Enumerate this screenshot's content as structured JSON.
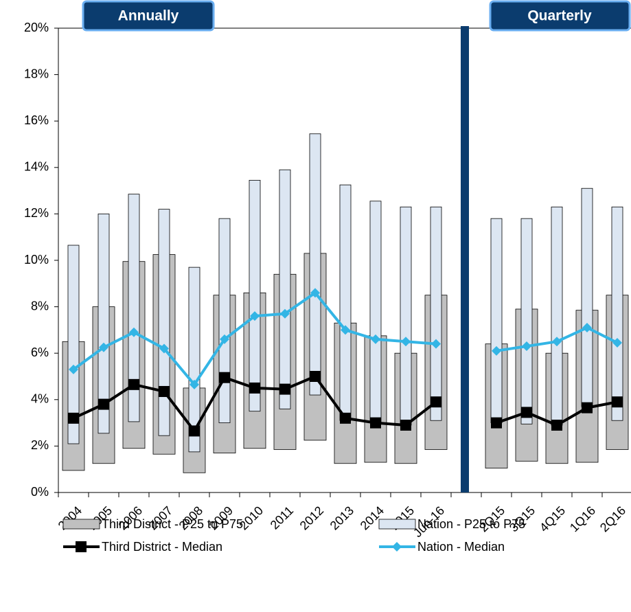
{
  "chart_data": {
    "type": "bar",
    "annotations": [
      "Annually",
      "Quarterly"
    ],
    "categories": [
      "2004",
      "2005",
      "2006",
      "2007",
      "2008",
      "2009",
      "2010",
      "2011",
      "2012",
      "2013",
      "2014",
      "2015",
      "Jun-16",
      null,
      "2Q15",
      "3Q15",
      "4Q15",
      "1Q16",
      "2Q16"
    ],
    "ylim": [
      0,
      20
    ],
    "yticks": [
      {
        "value": 0,
        "label": "0%"
      },
      {
        "value": 2,
        "label": "2%"
      },
      {
        "value": 4,
        "label": "4%"
      },
      {
        "value": 6,
        "label": "6%"
      },
      {
        "value": 8,
        "label": "8%"
      },
      {
        "value": 10,
        "label": "10%"
      },
      {
        "value": 12,
        "label": "12%"
      },
      {
        "value": 14,
        "label": "14%"
      },
      {
        "value": 16,
        "label": "16%"
      },
      {
        "value": 18,
        "label": "18%"
      },
      {
        "value": 20,
        "label": "20%"
      }
    ],
    "series": [
      {
        "name": "Third District - P25 to P75",
        "type": "range",
        "color": "#c0c0c0",
        "low": [
          0.95,
          1.25,
          1.9,
          1.65,
          0.85,
          1.7,
          1.9,
          1.85,
          2.25,
          1.25,
          1.3,
          1.25,
          1.85,
          null,
          1.05,
          1.35,
          1.25,
          1.3,
          1.85
        ],
        "high": [
          6.5,
          8.0,
          9.95,
          10.25,
          4.5,
          8.5,
          8.6,
          9.4,
          10.3,
          7.3,
          6.75,
          6.0,
          8.5,
          null,
          6.4,
          7.9,
          6.0,
          7.85,
          8.5
        ]
      },
      {
        "name": "Nation - P25 to P75",
        "type": "range",
        "color": "#dce6f2",
        "low": [
          2.1,
          2.55,
          3.05,
          2.45,
          1.75,
          3.0,
          3.5,
          3.6,
          4.2,
          3.1,
          3.0,
          2.9,
          3.1,
          null,
          3.0,
          2.95,
          2.9,
          3.7,
          3.1
        ],
        "high": [
          10.65,
          12.0,
          12.85,
          12.2,
          9.7,
          11.8,
          13.45,
          13.9,
          15.45,
          13.25,
          12.55,
          12.3,
          12.3,
          null,
          11.8,
          11.8,
          12.3,
          13.1,
          12.3
        ]
      },
      {
        "name": "Third District - Median",
        "type": "line",
        "color": "#000000",
        "marker": "square",
        "values": [
          3.2,
          3.8,
          4.65,
          4.35,
          2.65,
          4.95,
          4.5,
          4.45,
          5.0,
          3.2,
          3.0,
          2.9,
          3.9,
          null,
          3.0,
          3.45,
          2.9,
          3.65,
          3.9
        ]
      },
      {
        "name": "Nation - Median",
        "type": "line",
        "color": "#33b5e5",
        "marker": "diamond",
        "values": [
          5.3,
          6.25,
          6.9,
          6.2,
          4.65,
          6.6,
          7.6,
          7.7,
          8.6,
          7.0,
          6.6,
          6.5,
          6.4,
          null,
          6.1,
          6.3,
          6.5,
          7.1,
          6.45
        ]
      }
    ]
  }
}
